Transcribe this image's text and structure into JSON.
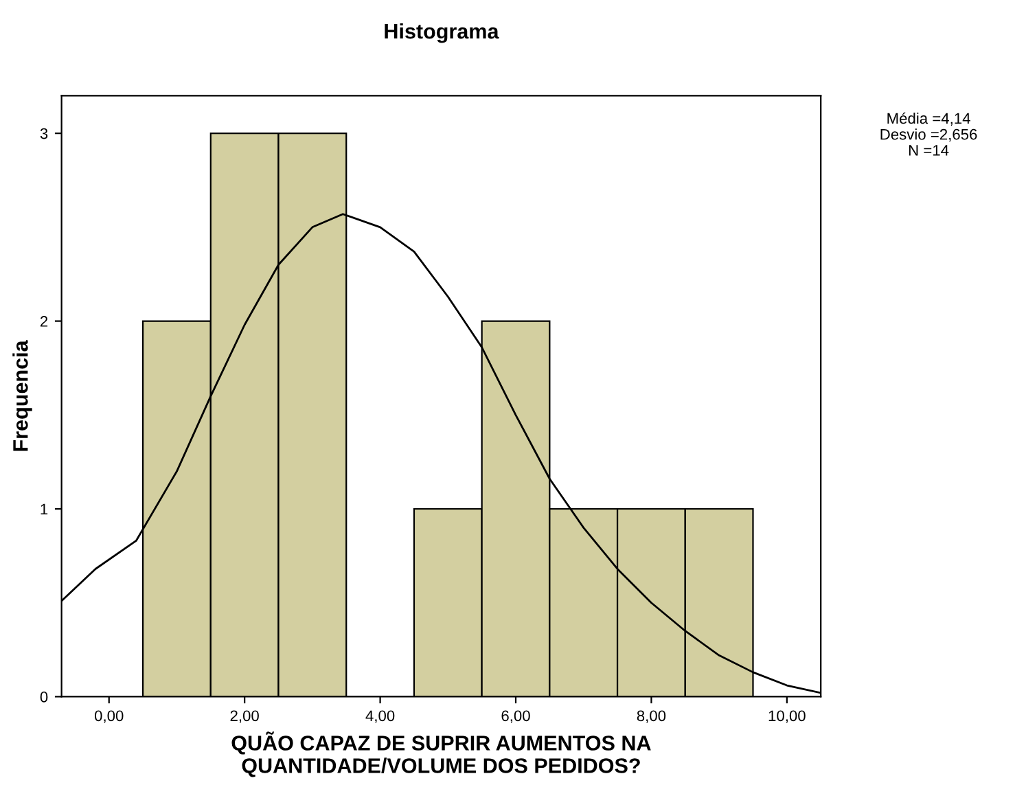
{
  "chart_data": {
    "type": "histogram",
    "title": "Histograma",
    "xlabel": "QUÃO CAPAZ DE SUPRIR AUMENTOS NA\nQUANTIDADE/VOLUME DOS PEDIDOS?",
    "ylabel": "Frequencia",
    "color": "#d3cfa0",
    "bins": [
      0.5,
      1.5,
      2.5,
      3.5,
      4.5,
      5.5,
      6.5,
      7.5,
      8.5,
      9.5
    ],
    "values": [
      2,
      3,
      3,
      0,
      1,
      2,
      1,
      1,
      1
    ],
    "series": [
      {
        "type": "line",
        "color": "#000000",
        "x": [
          -0.7,
          -0.2,
          0.4,
          1.0,
          1.5,
          2.0,
          2.5,
          3.0,
          3.45,
          4.0,
          4.5,
          5.0,
          5.5,
          6.0,
          6.5,
          7.0,
          7.5,
          8.0,
          8.5,
          9.0,
          9.5,
          10.0,
          10.5
        ],
        "values": [
          0.51,
          0.68,
          0.83,
          1.2,
          1.6,
          1.98,
          2.3,
          2.5,
          2.57,
          2.5,
          2.37,
          2.13,
          1.86,
          1.5,
          1.16,
          0.9,
          0.68,
          0.5,
          0.35,
          0.22,
          0.13,
          0.06,
          0.02
        ]
      }
    ],
    "xlim": [
      -0.7,
      10.5
    ],
    "ylim": [
      0,
      3.2
    ],
    "xticks": [
      {
        "value": 0,
        "label": "0,00"
      },
      {
        "value": 2,
        "label": "2,00"
      },
      {
        "value": 4,
        "label": "4,00"
      },
      {
        "value": 6,
        "label": "6,00"
      },
      {
        "value": 8,
        "label": "8,00"
      },
      {
        "value": 10,
        "label": "10,00"
      }
    ],
    "yticks": [
      0,
      1,
      2,
      3
    ],
    "grid": false,
    "legend": false,
    "annotations": [
      "Média =4,14",
      "Desvio =2,656",
      "N =14"
    ]
  }
}
